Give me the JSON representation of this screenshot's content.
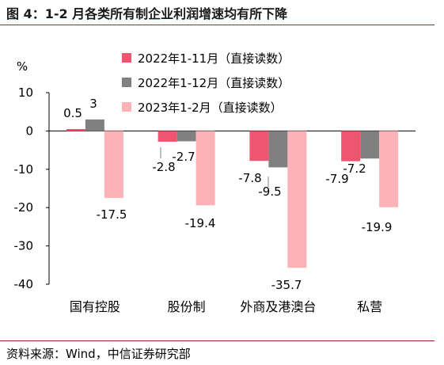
{
  "header": {
    "title": "图 4：1-2 月各类所有制企业利润增速均有所下降"
  },
  "footer": {
    "source": "资料来源：Wind，中信证券研究部"
  },
  "chart_data": {
    "type": "bar",
    "ylabel": "%",
    "ylim": [
      -40,
      10
    ],
    "yticks": [
      10,
      0,
      -10,
      -20,
      -30,
      -40
    ],
    "categories": [
      "国有控股",
      "股份制",
      "外商及港澳台",
      "私营"
    ],
    "series": [
      {
        "name": "2022年1-11月（直接读数）",
        "color": "#f0546f",
        "values": [
          0.5,
          -2.8,
          -7.8,
          -7.9
        ],
        "labels": [
          "0.5",
          "-2.8",
          "-7.8",
          "-7.9"
        ]
      },
      {
        "name": "2022年1-12月（直接读数）",
        "color": "#808080",
        "values": [
          3,
          -2.7,
          -9.5,
          -7.2
        ],
        "labels": [
          "3",
          "-2.7",
          "-9.5",
          "-7.2"
        ]
      },
      {
        "name": "2023年1-2月（直接读数）",
        "color": "#fbb3b8",
        "values": [
          -17.5,
          -19.4,
          -35.7,
          -19.9
        ],
        "labels": [
          "-17.5",
          "-19.4",
          "-35.7",
          "-19.9"
        ]
      }
    ],
    "legend_position": "top-center",
    "grid": false
  }
}
